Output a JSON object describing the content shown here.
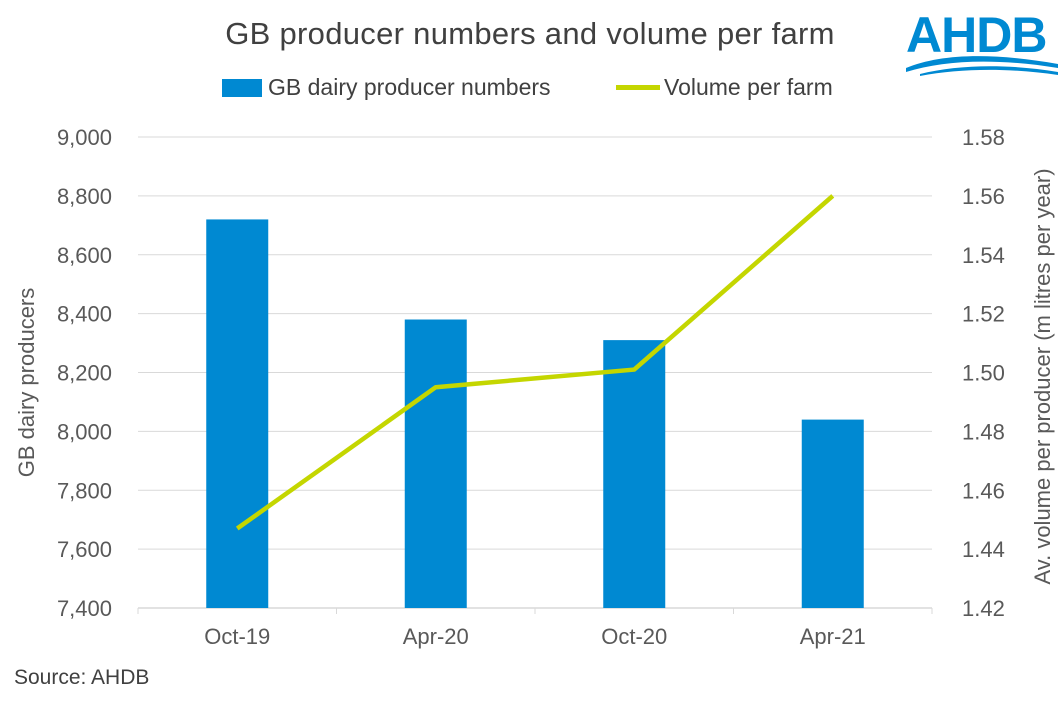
{
  "colors": {
    "bar": "#0089D2",
    "line": "#C4D600",
    "grid": "#D9D9D9",
    "text": "#595959",
    "logo": "#0089D2"
  },
  "logo": {
    "text": "AHDB"
  },
  "source": "Source: AHDB",
  "chart_data": {
    "type": "bar",
    "title": "GB producer numbers and volume per farm",
    "categories": [
      "Oct-19",
      "Apr-20",
      "Oct-20",
      "Apr-21"
    ],
    "series": [
      {
        "name": "GB dairy producer numbers",
        "type": "bar",
        "axis": "left",
        "values": [
          8720,
          8380,
          8310,
          8040
        ]
      },
      {
        "name": "Volume per farm",
        "type": "line",
        "axis": "right",
        "values": [
          1.447,
          1.495,
          1.501,
          1.56
        ]
      }
    ],
    "ylabel": "GB dairy producers",
    "y2label": "Av. volume per producer (m litres per year)",
    "ylim": [
      7400,
      9000
    ],
    "y2lim": [
      1.42,
      1.58
    ],
    "yticks": [
      "7,400",
      "7,600",
      "7,800",
      "8,000",
      "8,200",
      "8,400",
      "8,600",
      "8,800",
      "9,000"
    ],
    "y2ticks": [
      "1.42",
      "1.44",
      "1.46",
      "1.48",
      "1.50",
      "1.52",
      "1.54",
      "1.56",
      "1.58"
    ],
    "grid": true,
    "legend": "top"
  }
}
